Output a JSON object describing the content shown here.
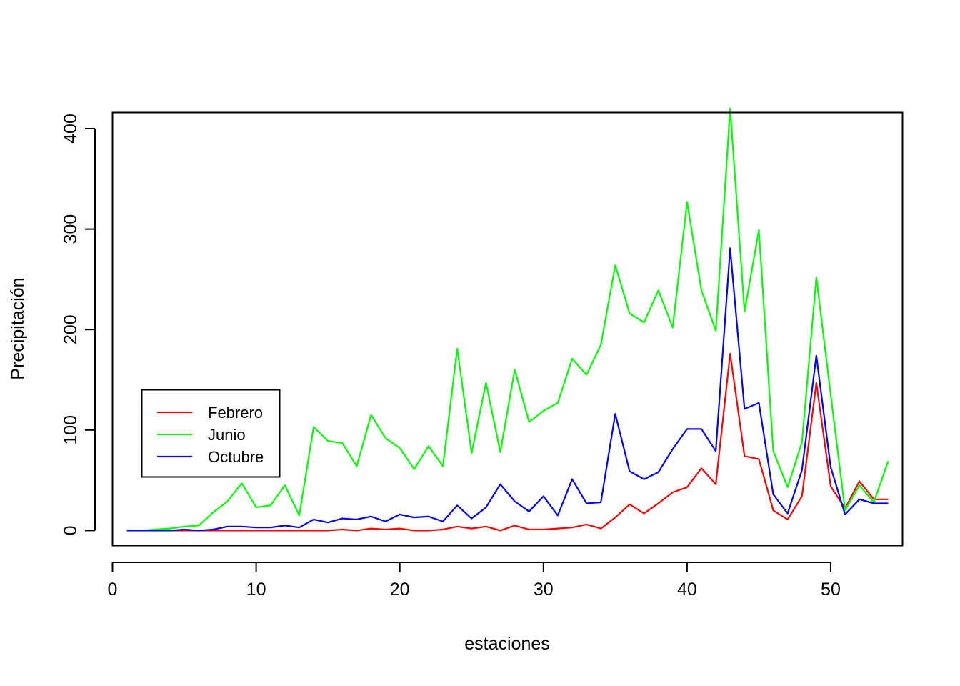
{
  "chart_data": {
    "type": "line",
    "xlabel": "estaciones",
    "ylabel": "Precipitación",
    "xlim": [
      0,
      55
    ],
    "ylim": [
      -15,
      416
    ],
    "xticks": [
      0,
      10,
      20,
      30,
      40,
      50
    ],
    "yticks": [
      0,
      100,
      200,
      300,
      400
    ],
    "xtick_labels": [
      "0",
      "10",
      "20",
      "30",
      "40",
      "50"
    ],
    "ytick_labels": [
      "0",
      "100",
      "200",
      "300",
      "400"
    ],
    "grid": false,
    "legend_position": "left",
    "x": [
      1,
      2,
      3,
      4,
      5,
      6,
      7,
      8,
      9,
      10,
      11,
      12,
      13,
      14,
      15,
      16,
      17,
      18,
      19,
      20,
      21,
      22,
      23,
      24,
      25,
      26,
      27,
      28,
      29,
      30,
      31,
      32,
      33,
      34,
      35,
      36,
      37,
      38,
      39,
      40,
      41,
      42,
      43,
      44,
      45,
      46,
      47,
      48,
      49,
      50,
      51,
      52,
      53,
      54
    ],
    "series": [
      {
        "name": "Febrero",
        "color": "#ff0000",
        "values": [
          0,
          0,
          0,
          0,
          0,
          0,
          0,
          0,
          0,
          0,
          0,
          0,
          0,
          0,
          0,
          1,
          0,
          2,
          1,
          2,
          0,
          0,
          1,
          4,
          2,
          4,
          0,
          5,
          1,
          1,
          2,
          3,
          6,
          2,
          13,
          26,
          17,
          27,
          38,
          43,
          62,
          46,
          176,
          74,
          71,
          20,
          11,
          34,
          147,
          44,
          22,
          49,
          31,
          31
        ]
      },
      {
        "name": "Junio",
        "color": "#00ff00",
        "values": [
          0,
          0,
          1,
          2,
          4,
          5,
          18,
          29,
          47,
          23,
          25,
          45,
          15,
          103,
          89,
          87,
          64,
          115,
          92,
          82,
          61,
          84,
          64,
          181,
          77,
          147,
          78,
          160,
          108,
          119,
          127,
          171,
          155,
          185,
          264,
          216,
          207,
          239,
          202,
          327,
          239,
          199,
          420,
          218,
          299,
          79,
          43,
          88,
          252,
          135,
          20,
          45,
          28,
          69
        ]
      },
      {
        "name": "Octubre",
        "color": "#0000ff",
        "values": [
          0,
          0,
          0,
          0,
          1,
          0,
          1,
          4,
          4,
          3,
          3,
          5,
          3,
          11,
          8,
          12,
          11,
          14,
          9,
          16,
          13,
          14,
          9,
          25,
          12,
          23,
          46,
          29,
          19,
          34,
          15,
          51,
          27,
          28,
          116,
          59,
          51,
          58,
          81,
          101,
          101,
          79,
          281,
          121,
          127,
          36,
          17,
          60,
          174,
          63,
          16,
          31,
          27,
          27
        ]
      }
    ]
  }
}
